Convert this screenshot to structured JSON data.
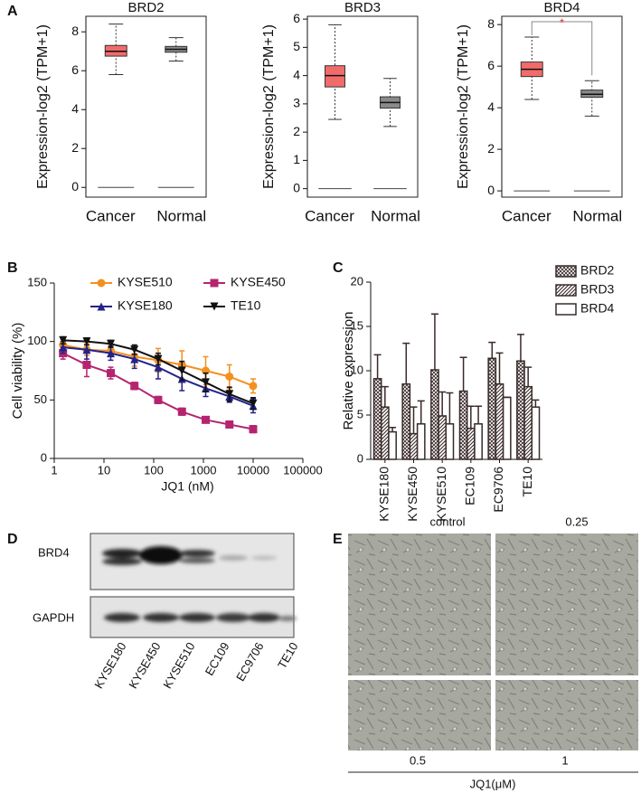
{
  "panel_labels": [
    "A",
    "B",
    "C",
    "D",
    "E"
  ],
  "chart_data": [
    {
      "type": "box",
      "title": "BRD2",
      "y_label": "Expression-log2 (TPM+1)",
      "categories": [
        "Cancer",
        "Normal"
      ],
      "ylim": [
        -0.5,
        8.8
      ],
      "yticks": [
        0,
        2,
        4,
        6,
        8
      ],
      "boxes": [
        {
          "color": "#f26b6b",
          "whisker_low": 5.8,
          "q1": 6.75,
          "median": 7.0,
          "q3": 7.3,
          "whisker_high": 8.4
        },
        {
          "color": "#8a8a8a",
          "whisker_low": 6.5,
          "q1": 6.95,
          "median": 7.1,
          "q3": 7.25,
          "whisker_high": 7.7
        }
      ],
      "baseline": [
        0,
        0
      ]
    },
    {
      "type": "box",
      "title": "BRD3",
      "y_label": "Expression-log2 (TPM+1)",
      "categories": [
        "Cancer",
        "Normal"
      ],
      "ylim": [
        -0.3,
        6.1
      ],
      "yticks": [
        0,
        1,
        2,
        3,
        4,
        5,
        6
      ],
      "boxes": [
        {
          "color": "#f26b6b",
          "whisker_low": 2.45,
          "q1": 3.6,
          "median": 4.0,
          "q3": 4.35,
          "whisker_high": 5.8
        },
        {
          "color": "#8a8a8a",
          "whisker_low": 2.2,
          "q1": 2.85,
          "median": 3.05,
          "q3": 3.25,
          "whisker_high": 3.9
        }
      ],
      "baseline": [
        0,
        0
      ]
    },
    {
      "type": "box",
      "title": "BRD4",
      "y_label": "Expression-log2 (TPM+1)",
      "categories": [
        "Cancer",
        "Normal"
      ],
      "ylim": [
        -0.3,
        8.4
      ],
      "yticks": [
        0,
        2,
        4,
        6,
        8
      ],
      "boxes": [
        {
          "color": "#f26b6b",
          "whisker_low": 4.4,
          "q1": 5.5,
          "median": 5.85,
          "q3": 6.2,
          "whisker_high": 7.4
        },
        {
          "color": "#8a8a8a",
          "whisker_low": 3.6,
          "q1": 4.5,
          "median": 4.65,
          "q3": 4.85,
          "whisker_high": 5.3
        }
      ],
      "baseline": [
        0,
        0
      ],
      "annotation": "*",
      "annotation_color": "#e03030"
    },
    {
      "type": "line",
      "x_label": "JQ1 (nM)",
      "y_label": "Cell viability (%)",
      "xscale": "log",
      "x": [
        1.5,
        4.5,
        13.7,
        41,
        123,
        370,
        1111,
        3333,
        10000
      ],
      "xlim": [
        1,
        100000
      ],
      "xticks": [
        1,
        10,
        100,
        1000,
        10000,
        100000
      ],
      "ylim": [
        0,
        150
      ],
      "yticks": [
        0,
        50,
        100,
        150
      ],
      "series": [
        {
          "name": "KYSE510",
          "color": "#f39020",
          "marker": "circle",
          "values": [
            97,
            93,
            92,
            87,
            84,
            80,
            75,
            70,
            62
          ],
          "errors": [
            5,
            5,
            5,
            8,
            10,
            12,
            12,
            10,
            6
          ]
        },
        {
          "name": "KYSE450",
          "color": "#b5246e",
          "marker": "square",
          "values": [
            90,
            80,
            73,
            62,
            50,
            40,
            33,
            29,
            25
          ],
          "errors": [
            5,
            10,
            5,
            3,
            3,
            3,
            2,
            2,
            3
          ]
        },
        {
          "name": "KYSE180",
          "color": "#23238a",
          "marker": "triangle",
          "values": [
            95,
            93,
            90,
            85,
            78,
            68,
            60,
            53,
            45
          ],
          "errors": [
            5,
            8,
            6,
            8,
            10,
            10,
            7,
            5,
            6
          ]
        },
        {
          "name": "TE10",
          "color": "#111111",
          "marker": "triangle-down",
          "values": [
            101,
            100,
            98,
            93,
            85,
            75,
            65,
            55,
            47
          ],
          "errors": [
            3,
            3,
            3,
            4,
            5,
            8,
            8,
            6,
            5
          ]
        }
      ]
    },
    {
      "type": "bar",
      "y_label": "Relative expression",
      "categories": [
        "KYSE180",
        "KYSE450",
        "KYSE510",
        "EC109",
        "EC9706",
        "TE10"
      ],
      "ylim": [
        0,
        20
      ],
      "yticks": [
        0,
        5,
        10,
        15,
        20
      ],
      "series": [
        {
          "name": "BRD2",
          "color": "#3a2a2a",
          "pattern": "crosshatch",
          "values": [
            9.1,
            8.5,
            10.1,
            7.7,
            11.4,
            11.1
          ],
          "errors": [
            2.7,
            4.6,
            6.3,
            3.8,
            1.8,
            3.0
          ]
        },
        {
          "name": "BRD3",
          "color": "#3a2a2a",
          "pattern": "diagonal",
          "values": [
            5.9,
            2.9,
            4.9,
            3.5,
            8.5,
            8.2
          ],
          "errors": [
            2.3,
            3.0,
            2.7,
            2.5,
            3.5,
            2.2
          ]
        },
        {
          "name": "BRD4",
          "color": "#3a2a2a",
          "pattern": "none",
          "values": [
            3.1,
            4.0,
            4.0,
            4.0,
            7.0,
            5.9
          ],
          "errors": [
            0.5,
            2.6,
            3.5,
            2.0,
            0,
            0.8
          ]
        }
      ]
    }
  ],
  "blot": {
    "rows": [
      "BRD4",
      "GAPDH"
    ],
    "lanes": [
      "KYSE180",
      "KYSE450",
      "KYSE510",
      "EC109",
      "EC9706",
      "TE10"
    ]
  },
  "micrographs": {
    "labels": [
      "control",
      "0.25",
      "0.5",
      "1"
    ],
    "axis_label": "JQ1(μM)"
  }
}
